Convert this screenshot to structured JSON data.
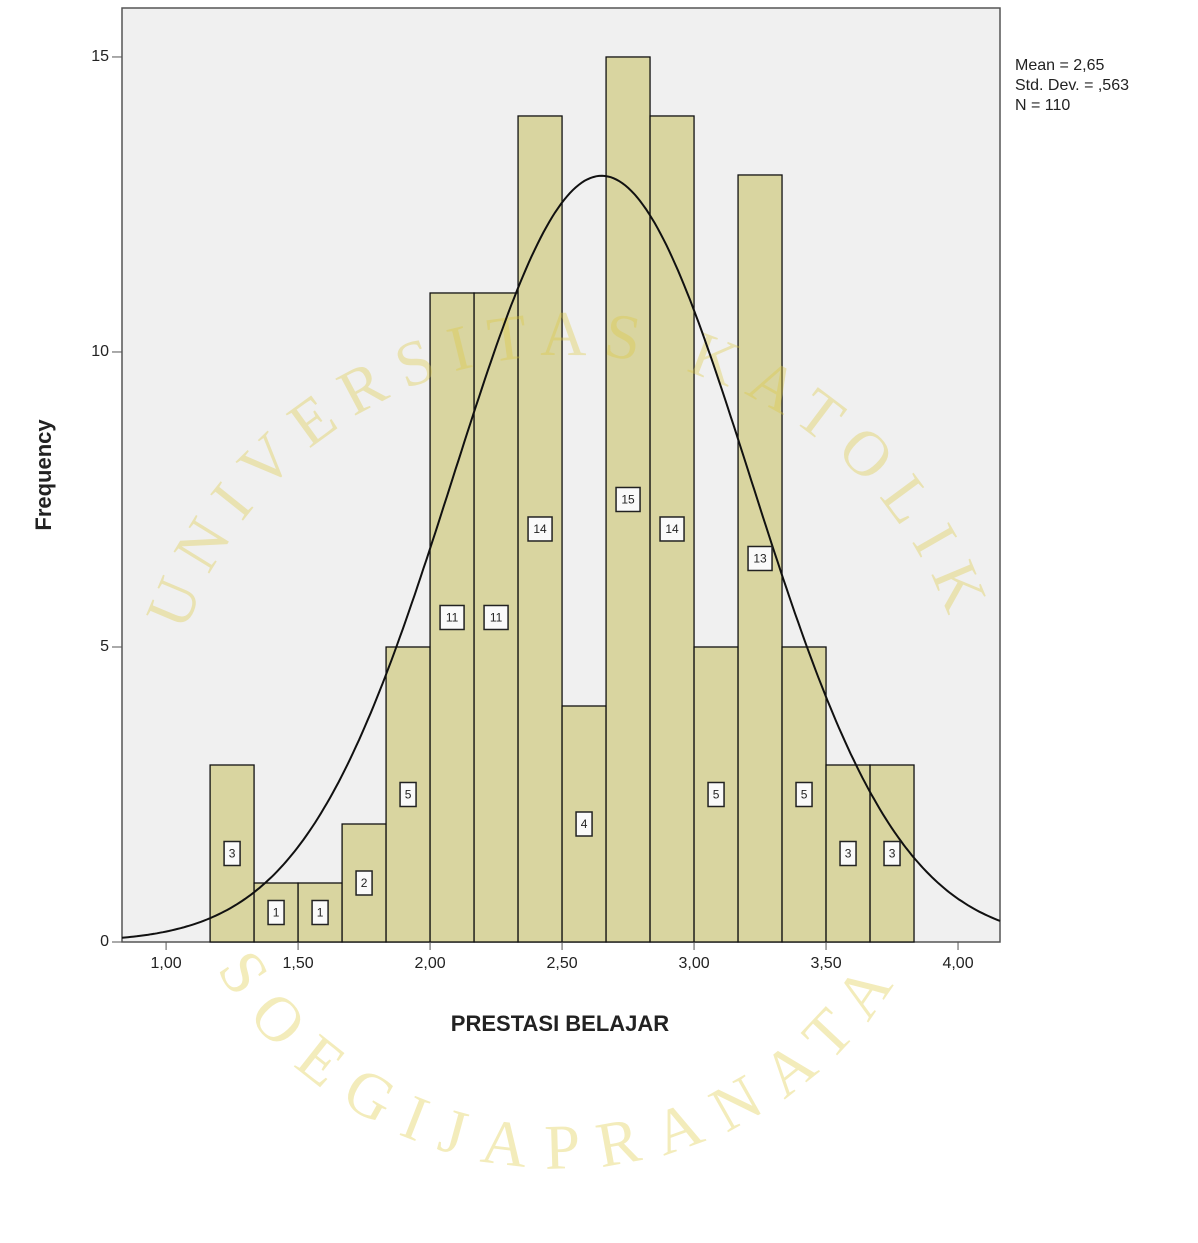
{
  "chart_data": {
    "type": "histogram",
    "x_label": "PRESTASI BELAJAR",
    "y_label": "Frequency",
    "bins": [
      1.1667,
      1.3333,
      1.5,
      1.6667,
      1.8333,
      2.0,
      2.1667,
      2.3333,
      2.5,
      2.6667,
      2.8333,
      3.0,
      3.1667,
      3.3333,
      3.5,
      3.6667,
      3.8333
    ],
    "values": [
      3,
      1,
      1,
      2,
      5,
      11,
      11,
      14,
      4,
      15,
      14,
      5,
      13,
      5,
      3,
      3
    ],
    "color": "#d6d197",
    "xlim": [
      0.833,
      4.159
    ],
    "ylim": [
      0,
      15.83
    ],
    "xticks": [
      {
        "value": 1,
        "label": "1,00"
      },
      {
        "value": 1.5,
        "label": "1,50"
      },
      {
        "value": 2,
        "label": "2,00"
      },
      {
        "value": 2.5,
        "label": "2,50"
      },
      {
        "value": 3,
        "label": "3,00"
      },
      {
        "value": 3.5,
        "label": "3,50"
      },
      {
        "value": 4,
        "label": "4,00"
      }
    ],
    "yticks": [
      0,
      5,
      10,
      15
    ],
    "stats": [
      {
        "value": 2.65,
        "label": "Mean = 2,65"
      },
      {
        "value": 0.563,
        "label": "Std. Dev. = ,563"
      },
      {
        "value": 110,
        "label": "N = 110"
      }
    ],
    "watermark": [
      "UNIVERSITAS KATOLIK",
      "SOEGIJAPRANATA"
    ]
  }
}
